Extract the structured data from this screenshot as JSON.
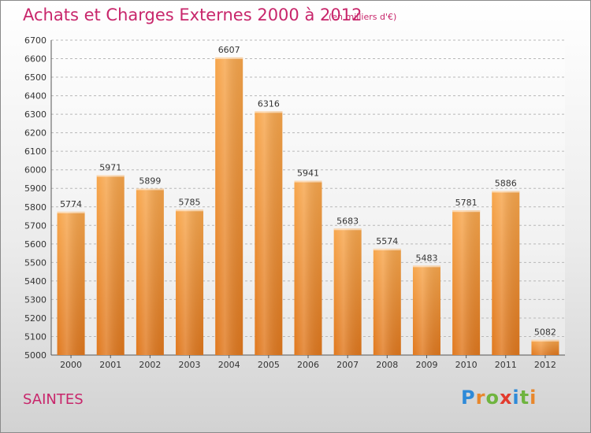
{
  "title": "Achats et Charges Externes 2000 à 2012",
  "subtitle": "(en milliers d'€)",
  "city": "SAINTES",
  "logo": {
    "text": "Proxiti",
    "letters": [
      {
        "ch": "P",
        "color": "#2e8ad8"
      },
      {
        "ch": "r",
        "color": "#e8872c"
      },
      {
        "ch": "o",
        "color": "#6fb43f"
      },
      {
        "ch": "x",
        "color": "#e23b2e"
      },
      {
        "ch": "i",
        "color": "#2e8ad8"
      },
      {
        "ch": "t",
        "color": "#6fb43f"
      },
      {
        "ch": "i",
        "color": "#e8872c"
      }
    ]
  },
  "chart_data": {
    "type": "bar",
    "categories": [
      "2000",
      "2001",
      "2002",
      "2003",
      "2004",
      "2005",
      "2006",
      "2007",
      "2008",
      "2009",
      "2010",
      "2011",
      "2012"
    ],
    "values": [
      5774,
      5971,
      5899,
      5785,
      6607,
      6316,
      5941,
      5683,
      5574,
      5483,
      5781,
      5886,
      5082
    ],
    "ylim": [
      5000,
      6700
    ],
    "yticks": [
      5000,
      5100,
      5200,
      5300,
      5400,
      5500,
      5600,
      5700,
      5800,
      5900,
      6000,
      6100,
      6200,
      6300,
      6400,
      6500,
      6600,
      6700
    ],
    "grid": true,
    "bar_color": "#f08a2c",
    "title_color": "#c8266b"
  }
}
